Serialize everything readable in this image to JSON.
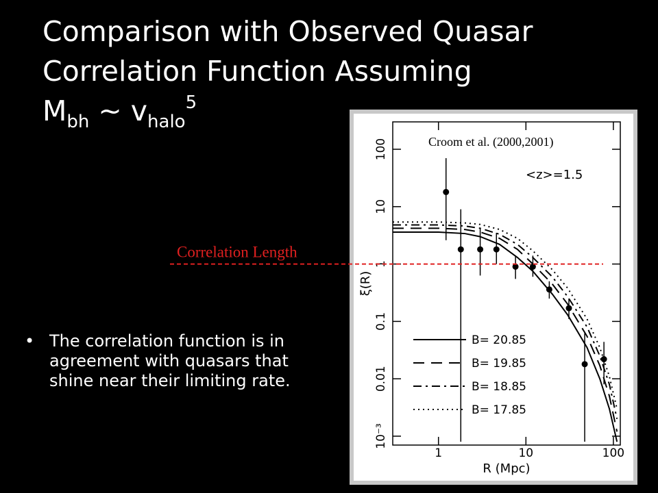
{
  "slide_title": {
    "lines": [
      "Comparison with Observed Quasar",
      "Correlation Function Assuming"
    ],
    "formula": {
      "mass": "M",
      "mass_sub": "bh",
      "relation": " ~ v",
      "velocity_sub": "halo",
      "power": "5"
    }
  },
  "bullet": "The correlation function is in agreement with quasars that shine near their limiting rate.",
  "chart_data": {
    "type": "line",
    "x_label": "R (Mpc)",
    "y_label": "ξ(R)",
    "annotations": [
      "Croom et al. (2000,2001)",
      "<z>=1.5"
    ],
    "reference_line": {
      "value": 1,
      "label": "Correlation Length",
      "color": "#e02020"
    },
    "x_log": true,
    "y_log": true,
    "xlim": [
      0.3,
      120
    ],
    "ylim": [
      0.0007,
      300
    ],
    "xticks": [
      1,
      10,
      100
    ],
    "yticks": [
      {
        "value": 0.001,
        "label": "10⁻³"
      },
      0.01,
      0.1,
      1,
      10,
      100
    ],
    "x": [
      0.3,
      1,
      2,
      3,
      5,
      8,
      12,
      20,
      30,
      50,
      70,
      90,
      110
    ],
    "series": [
      {
        "name": "B= 20.85",
        "color": "#000000",
        "dash": "solid",
        "values": [
          3.6,
          3.6,
          3.4,
          3.0,
          2.2,
          1.3,
          0.75,
          0.3,
          0.13,
          0.035,
          0.01,
          0.003,
          0.0008
        ]
      },
      {
        "name": "B= 19.85",
        "color": "#000000",
        "dash": "dashed",
        "values": [
          4.2,
          4.2,
          4.0,
          3.6,
          2.8,
          1.8,
          1.0,
          0.45,
          0.2,
          0.055,
          0.017,
          0.005,
          0.0012
        ]
      },
      {
        "name": "B= 18.85",
        "color": "#000000",
        "dash": "dashdot",
        "values": [
          4.8,
          4.8,
          4.6,
          4.2,
          3.3,
          2.2,
          1.3,
          0.6,
          0.27,
          0.08,
          0.025,
          0.008,
          0.002
        ]
      },
      {
        "name": "B= 17.85",
        "color": "#000000",
        "dash": "dotted",
        "values": [
          5.4,
          5.4,
          5.2,
          4.9,
          4.0,
          2.8,
          1.7,
          0.8,
          0.38,
          0.11,
          0.035,
          0.011,
          0.003
        ]
      }
    ],
    "points": {
      "color": "#000000",
      "x": [
        1.22,
        1.8,
        3.0,
        4.6,
        7.6,
        12,
        18.5,
        31,
        47,
        78
      ],
      "y": [
        18,
        1.8,
        1.8,
        1.8,
        0.9,
        0.9,
        0.36,
        0.17,
        0.018,
        0.022
      ],
      "err_low": [
        2.6,
        0.0008,
        0.63,
        1.0,
        0.55,
        0.6,
        0.25,
        0.11,
        0.0008,
        0.008
      ],
      "err_high": [
        70,
        9,
        4.3,
        3.5,
        1.4,
        1.4,
        0.5,
        0.25,
        0.062,
        0.044
      ]
    }
  }
}
